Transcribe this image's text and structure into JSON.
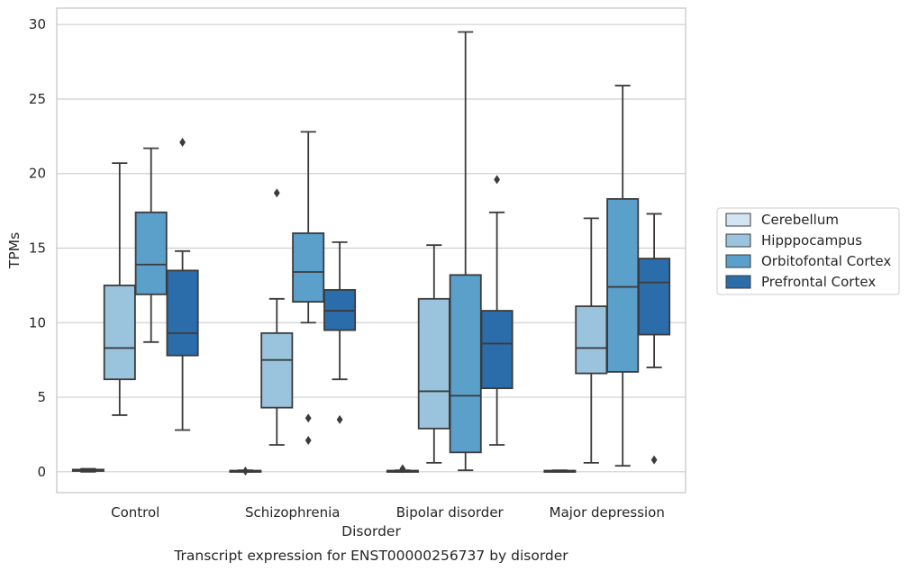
{
  "chart_data": {
    "type": "boxplot",
    "title": "",
    "caption": "Transcript expression for ENST00000256737 by disorder",
    "xlabel": "Disorder",
    "ylabel": "TPMs",
    "ylim": [
      -1.4,
      31.1
    ],
    "yticks": [
      0,
      5,
      10,
      15,
      20,
      25,
      30
    ],
    "grid": "horizontal",
    "legend_position": "right",
    "categories": [
      "Control",
      "Schizophrenia",
      "Bipolar disorder",
      "Major depression"
    ],
    "series": [
      {
        "name": "Cerebellum",
        "color": "#d3e4f3",
        "boxes": [
          {
            "whislo": 0.0,
            "q1": 0.05,
            "med": 0.1,
            "q3": 0.15,
            "whishi": 0.2,
            "fliers": []
          },
          {
            "whislo": 0.0,
            "q1": 0.03,
            "med": 0.05,
            "q3": 0.08,
            "whishi": 0.1,
            "fliers": [
              0.05
            ]
          },
          {
            "whislo": 0.0,
            "q1": 0.03,
            "med": 0.05,
            "q3": 0.08,
            "whishi": 0.1,
            "fliers": [
              0.2
            ]
          },
          {
            "whislo": 0.0,
            "q1": 0.03,
            "med": 0.05,
            "q3": 0.08,
            "whishi": 0.1,
            "fliers": []
          }
        ]
      },
      {
        "name": "Hipppocampus",
        "color": "#9ac4de",
        "boxes": [
          {
            "whislo": 3.8,
            "q1": 6.2,
            "med": 8.3,
            "q3": 12.5,
            "whishi": 20.7,
            "fliers": []
          },
          {
            "whislo": 1.8,
            "q1": 4.3,
            "med": 7.5,
            "q3": 9.3,
            "whishi": 11.6,
            "fliers": [
              18.7
            ]
          },
          {
            "whislo": 0.6,
            "q1": 2.9,
            "med": 5.4,
            "q3": 11.6,
            "whishi": 15.2,
            "fliers": []
          },
          {
            "whislo": 0.6,
            "q1": 6.6,
            "med": 8.3,
            "q3": 11.1,
            "whishi": 17.0,
            "fliers": []
          }
        ]
      },
      {
        "name": "Orbitofontal Cortex",
        "color": "#5b9fcb",
        "boxes": [
          {
            "whislo": 8.7,
            "q1": 11.9,
            "med": 13.9,
            "q3": 17.4,
            "whishi": 21.7,
            "fliers": []
          },
          {
            "whislo": 10.0,
            "q1": 11.4,
            "med": 13.4,
            "q3": 16.0,
            "whishi": 22.8,
            "fliers": [
              3.6,
              2.1
            ]
          },
          {
            "whislo": 0.1,
            "q1": 1.3,
            "med": 5.1,
            "q3": 13.2,
            "whishi": 29.5,
            "fliers": []
          },
          {
            "whislo": 0.4,
            "q1": 6.7,
            "med": 12.4,
            "q3": 18.3,
            "whishi": 25.9,
            "fliers": []
          }
        ]
      },
      {
        "name": "Prefrontal Cortex",
        "color": "#2b6dab",
        "boxes": [
          {
            "whislo": 2.8,
            "q1": 7.8,
            "med": 9.3,
            "q3": 13.5,
            "whishi": 14.8,
            "fliers": [
              22.1
            ]
          },
          {
            "whislo": 6.2,
            "q1": 9.5,
            "med": 10.8,
            "q3": 12.2,
            "whishi": 15.4,
            "fliers": [
              3.5
            ]
          },
          {
            "whislo": 1.8,
            "q1": 5.6,
            "med": 8.6,
            "q3": 10.8,
            "whishi": 17.4,
            "fliers": [
              19.6
            ]
          },
          {
            "whislo": 7.0,
            "q1": 9.2,
            "med": 12.7,
            "q3": 14.3,
            "whishi": 17.3,
            "fliers": [
              0.8
            ]
          }
        ]
      }
    ]
  }
}
